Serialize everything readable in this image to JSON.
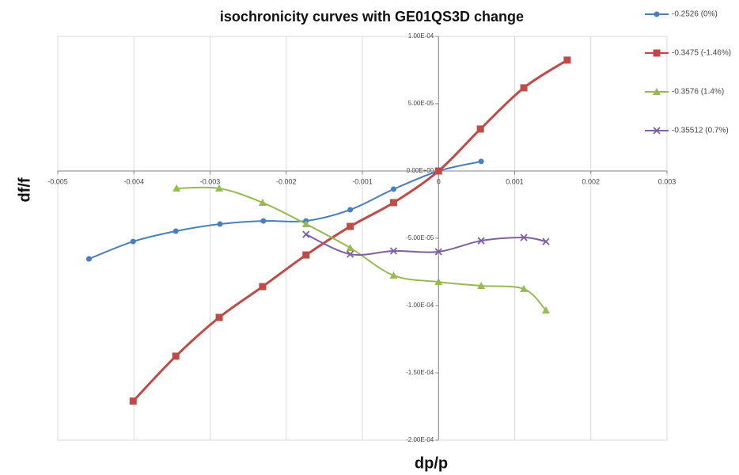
{
  "chart_data": {
    "type": "scatter",
    "title": "isochronicity curves with GE01QS3D change",
    "xlabel": "dp/p",
    "ylabel": "df/f",
    "xlim": [
      -0.005,
      0.003
    ],
    "xticks": [
      -0.005,
      -0.004,
      -0.003,
      -0.002,
      -0.001,
      0,
      0.001,
      0.002,
      0.003
    ],
    "ylim": [
      -0.0002,
      0.0001
    ],
    "yticks": [
      {
        "value": 0.0001,
        "label": "1.00E-04"
      },
      {
        "value": 5e-05,
        "label": "5.00E-05"
      },
      {
        "value": 0,
        "label": "0.00E+00"
      },
      {
        "value": -5e-05,
        "label": "-5.00E-05"
      },
      {
        "value": -0.0001,
        "label": "-1.00E-04"
      },
      {
        "value": -0.00015,
        "label": "-1.50E-04"
      },
      {
        "value": -0.0002,
        "label": "-2.00E-04"
      }
    ],
    "grid": true,
    "smooth": true,
    "legend": "right",
    "series": [
      {
        "name": "-0.2526 (0%)",
        "color": "#4a7ebb",
        "marker": "circle",
        "x": [
          -0.00459,
          -0.00401,
          -0.00345,
          -0.00287,
          -0.0023,
          -0.00174,
          -0.00116,
          -0.00059,
          0,
          0.00056
        ],
        "y": [
          -6.53e-05,
          -5.24e-05,
          -4.47e-05,
          -3.94e-05,
          -3.71e-05,
          -3.71e-05,
          -2.88e-05,
          -1.35e-05,
          0,
          7.1e-06
        ]
      },
      {
        "name": "-0.3475 (-1.46%)",
        "color": "#be4b48",
        "marker": "square",
        "x": [
          -0.00401,
          -0.00345,
          -0.00288,
          -0.00231,
          -0.00174,
          -0.00116,
          -0.00059,
          0,
          0.00055,
          0.00112,
          0.00169
        ],
        "y": [
          -0.000171,
          -0.0001376,
          -0.0001088,
          -8.59e-05,
          -6.24e-05,
          -4.12e-05,
          -2.35e-05,
          0,
          3.12e-05,
          6.18e-05,
          8.24e-05
        ]
      },
      {
        "name": "-0.3576 (1.4%)",
        "color": "#98b954",
        "marker": "triangle",
        "x": [
          -0.00344,
          -0.00288,
          -0.00231,
          -0.00174,
          -0.00116,
          -0.00059,
          0,
          0.00056,
          0.00112,
          0.00141
        ],
        "y": [
          -1.29e-05,
          -1.29e-05,
          -2.35e-05,
          -3.94e-05,
          -5.71e-05,
          -7.76e-05,
          -8.24e-05,
          -8.53e-05,
          -8.76e-05,
          -0.0001035
        ]
      },
      {
        "name": "-0.35512 (0.7%)",
        "color": "#7d60a0",
        "marker": "x",
        "x": [
          -0.00174,
          -0.00116,
          -0.00059,
          0,
          0.00056,
          0.00112,
          0.00141
        ],
        "y": [
          -4.71e-05,
          -6.18e-05,
          -5.94e-05,
          -6e-05,
          -5.18e-05,
          -4.94e-05,
          -5.24e-05
        ]
      }
    ]
  }
}
